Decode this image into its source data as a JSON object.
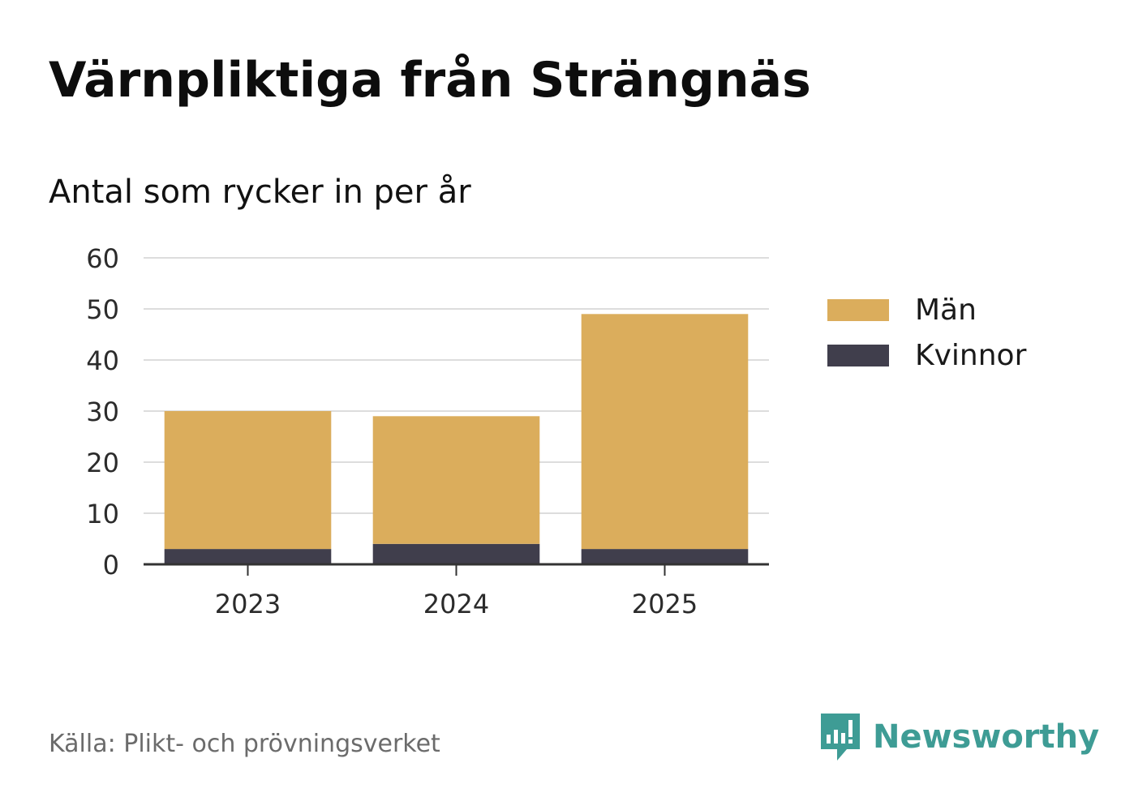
{
  "title": "Värnpliktiga från Strängnäs",
  "subtitle": "Antal som rycker in per år",
  "source": "Källa: Plikt- och prövningsverket",
  "brand": "Newsworthy",
  "colors": {
    "man": "#dbad5c",
    "kvinnor": "#403e4c",
    "grid": "#dddddd",
    "axis": "#333333",
    "brand": "#3e9c95"
  },
  "chart_data": {
    "type": "bar",
    "stacked": true,
    "categories": [
      "2023",
      "2024",
      "2025"
    ],
    "series": [
      {
        "name": "Kvinnor",
        "values": [
          3,
          4,
          3
        ]
      },
      {
        "name": "Män",
        "values": [
          27,
          25,
          46
        ]
      }
    ],
    "ylim": [
      0,
      60
    ],
    "yticks": [
      0,
      10,
      20,
      30,
      40,
      50,
      60
    ],
    "grid": true,
    "legend": "right"
  },
  "legend": {
    "items": [
      {
        "label": "Män",
        "color_key": "man"
      },
      {
        "label": "Kvinnor",
        "color_key": "kvinnor"
      }
    ]
  },
  "icons": {
    "brand_logo": "newsworthy-logo-icon"
  }
}
